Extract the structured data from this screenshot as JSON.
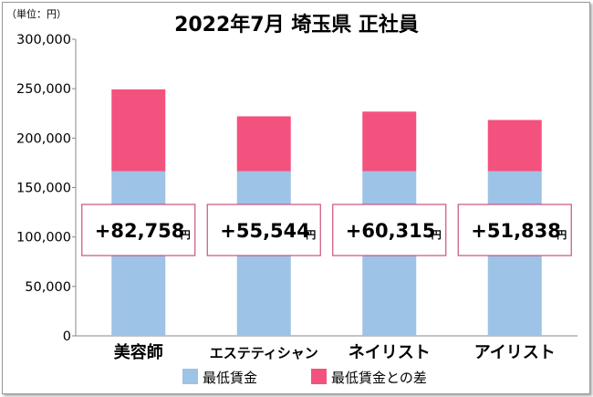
{
  "chart_data": {
    "type": "bar",
    "stacked": true,
    "title": "2022年7月 埼玉県 正社員",
    "unit_label": "（単位：円）",
    "categories": [
      "美容師",
      "エステティシャン",
      "ネイリスト",
      "アイリスト"
    ],
    "series": [
      {
        "name": "最低賃金",
        "color": "#9dc3e6",
        "values": [
          166512,
          166512,
          166512,
          166512
        ]
      },
      {
        "name": "最低賃金との差",
        "color": "#f4527e",
        "values": [
          82758,
          55544,
          60315,
          51838
        ]
      }
    ],
    "difference_labels": [
      "+82,758",
      "+55,544",
      "+60,315",
      "+51,838"
    ],
    "difference_unit": "円",
    "ylim": [
      0,
      300000
    ],
    "yticks": [
      0,
      50000,
      100000,
      150000,
      200000,
      250000,
      300000
    ],
    "ytick_labels": [
      "0",
      "50,000",
      "100,000",
      "150,000",
      "200,000",
      "250,000",
      "300,000"
    ],
    "grid": false,
    "legend_position": "bottom"
  }
}
